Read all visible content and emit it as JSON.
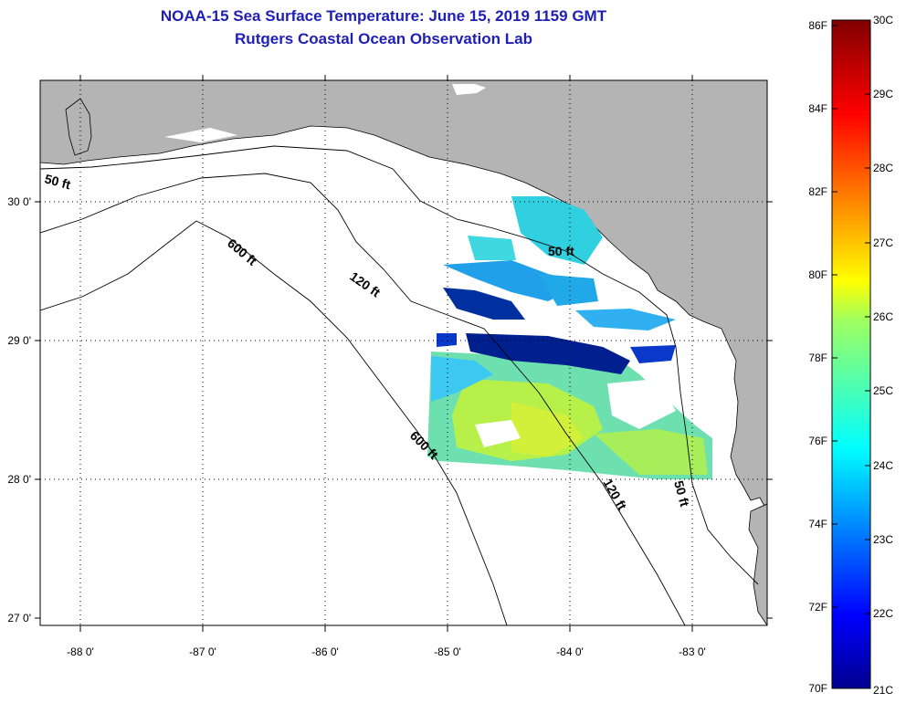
{
  "title": {
    "line1": "NOAA-15 Sea Surface Temperature:  June 15, 2019 1159 GMT",
    "line2": "Rutgers Coastal Ocean Observation Lab"
  },
  "axes": {
    "lon_labels": [
      "-88 0'",
      "-87 0'",
      "-86 0'",
      "-85 0'",
      "-84 0'",
      "-83 0'"
    ],
    "lat_labels": [
      "30 0'",
      "29 0'",
      "28 0'",
      "27 0'"
    ]
  },
  "contours": {
    "c50_west": "50 ft",
    "c50_east": "50 ft",
    "c50_south": "50 ft",
    "c120_north": "120 ft",
    "c120_south": "120 ft",
    "c600_north": "600 ft",
    "c600_south": "600 ft"
  },
  "colorbar": {
    "fahrenheit": [
      "86F",
      "84F",
      "82F",
      "80F",
      "78F",
      "76F",
      "74F",
      "72F",
      "70F"
    ],
    "celsius": [
      "30C",
      "29C",
      "28C",
      "27C",
      "26C",
      "25C",
      "24C",
      "23C",
      "22C",
      "21C"
    ]
  },
  "colors": {
    "land": "#b4b4b4",
    "water": "#ffffff",
    "title": "#1f1fb4"
  }
}
